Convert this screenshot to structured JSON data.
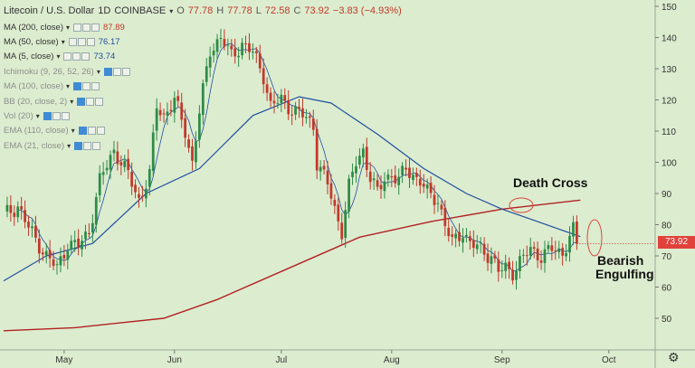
{
  "header": {
    "symbol": "Litecoin / U.S. Dollar",
    "interval": "1D",
    "exchange": "COINBASE",
    "open_label": "O",
    "open": "77.78",
    "high_label": "H",
    "high": "77.78",
    "low_label": "L",
    "low": "72.58",
    "close_label": "C",
    "close": "73.92",
    "change": "−3.83 (−4.93%)"
  },
  "indicators": [
    {
      "name": "MA (200, close)",
      "value": "87.89",
      "color": "#c0392b",
      "active": true
    },
    {
      "name": "MA (50, close)",
      "value": "76.17",
      "color": "#1f4fa0",
      "active": true
    },
    {
      "name": "MA (5, close)",
      "value": "73.74",
      "color": "#1f4fa0",
      "active": true
    },
    {
      "name": "Ichimoku (9, 26, 52, 26)",
      "value": "",
      "active": false
    },
    {
      "name": "MA (100, close)",
      "value": "",
      "active": false
    },
    {
      "name": "BB (20, close, 2)",
      "value": "",
      "active": false
    },
    {
      "name": "Vol (20)",
      "value": "",
      "active": false
    },
    {
      "name": "EMA (110, close)",
      "value": "",
      "active": false
    },
    {
      "name": "EMA (21, close)",
      "value": "",
      "active": false
    }
  ],
  "annotations": {
    "death_cross": "Death Cross",
    "bearish": "Bearish",
    "engulfing": "Engulfing"
  },
  "last_price": "73.92",
  "colors": {
    "background": "#dceccf",
    "up": "#2e8b47",
    "down": "#c0392b",
    "ma200": "#b22222",
    "ma50": "#1f4fa0",
    "ma5": "#1f4fa0",
    "ellipse": "#d9483b",
    "price_label_bg": "#e0413a"
  },
  "chart_data": {
    "type": "candlestick",
    "y_axis": {
      "min": 40,
      "max": 150,
      "ticks": [
        50,
        60,
        70,
        80,
        90,
        100,
        110,
        120,
        130,
        140,
        150
      ],
      "side": "right"
    },
    "x_axis_labels": [
      "May",
      "Jun",
      "Jul",
      "Aug",
      "Sep",
      "Oct"
    ],
    "x_label_days": [
      17,
      48,
      78,
      109,
      140,
      170
    ],
    "total_days": 182,
    "anchors": [
      [
        0,
        83
      ],
      [
        4,
        86
      ],
      [
        7,
        79
      ],
      [
        12,
        70
      ],
      [
        15,
        66
      ],
      [
        18,
        74
      ],
      [
        21,
        73
      ],
      [
        24,
        78
      ],
      [
        27,
        94
      ],
      [
        31,
        104
      ],
      [
        35,
        96
      ],
      [
        38,
        88
      ],
      [
        41,
        96
      ],
      [
        43,
        118
      ],
      [
        45,
        115
      ],
      [
        48,
        120
      ],
      [
        51,
        110
      ],
      [
        53,
        100
      ],
      [
        55,
        116
      ],
      [
        58,
        136
      ],
      [
        61,
        140
      ],
      [
        64,
        134
      ],
      [
        67,
        138
      ],
      [
        70,
        135
      ],
      [
        73,
        128
      ],
      [
        75,
        118
      ],
      [
        78,
        120
      ],
      [
        81,
        117
      ],
      [
        84,
        115
      ],
      [
        87,
        112
      ],
      [
        88,
        100
      ],
      [
        91,
        93
      ],
      [
        93,
        85
      ],
      [
        95,
        78
      ],
      [
        97,
        92
      ],
      [
        99,
        100
      ],
      [
        101,
        104
      ],
      [
        103,
        95
      ],
      [
        105,
        90
      ],
      [
        107,
        95
      ],
      [
        109,
        96
      ],
      [
        111,
        94
      ],
      [
        113,
        98
      ],
      [
        115,
        96
      ],
      [
        117,
        94
      ],
      [
        119,
        90
      ],
      [
        122,
        88
      ],
      [
        124,
        80
      ],
      [
        126,
        74
      ],
      [
        129,
        78
      ],
      [
        131,
        74
      ],
      [
        134,
        72
      ],
      [
        137,
        70
      ],
      [
        139,
        65
      ],
      [
        141,
        66
      ],
      [
        143,
        65
      ],
      [
        145,
        68
      ],
      [
        148,
        72
      ],
      [
        151,
        70
      ],
      [
        154,
        72
      ],
      [
        157,
        71
      ],
      [
        159,
        76
      ],
      [
        160,
        78
      ],
      [
        161,
        73.92
      ]
    ],
    "ma200": [
      [
        0,
        46
      ],
      [
        20,
        47
      ],
      [
        45,
        50
      ],
      [
        60,
        56
      ],
      [
        80,
        66
      ],
      [
        100,
        76
      ],
      [
        120,
        81
      ],
      [
        140,
        85
      ],
      [
        162,
        87.89
      ]
    ],
    "ma50": [
      [
        0,
        62
      ],
      [
        12,
        70
      ],
      [
        25,
        74
      ],
      [
        40,
        90
      ],
      [
        55,
        98
      ],
      [
        70,
        115
      ],
      [
        83,
        121
      ],
      [
        92,
        119
      ],
      [
        105,
        109
      ],
      [
        118,
        98
      ],
      [
        130,
        90
      ],
      [
        140,
        85
      ],
      [
        150,
        81
      ],
      [
        162,
        76.17
      ]
    ],
    "series": [
      {
        "name": "MA (200, close)",
        "color": "#b22222"
      },
      {
        "name": "MA (50, close)",
        "color": "#1f4fa0"
      },
      {
        "name": "MA (5, close)",
        "color": "#1f4fa0"
      }
    ]
  }
}
